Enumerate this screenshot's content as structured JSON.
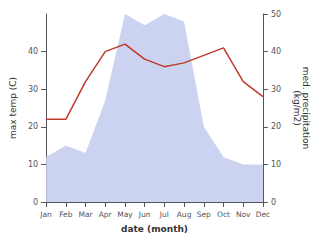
{
  "chart_data": {
    "type": "line",
    "categories": [
      "Jan",
      "Feb",
      "Mar",
      "Apr",
      "May",
      "Jun",
      "Jul",
      "Aug",
      "Sep",
      "Oct",
      "Nov",
      "Dec"
    ],
    "series": [
      {
        "type": "line",
        "color": "#c0392b",
        "axis": "y",
        "values": [
          22,
          22,
          32,
          40,
          42,
          38,
          36,
          37,
          39,
          41,
          32,
          28
        ]
      },
      {
        "type": "area",
        "color": "#c5cef0",
        "axis": "y2",
        "values": [
          12,
          15,
          13,
          27,
          50,
          47,
          50,
          48,
          20,
          12,
          10,
          10
        ]
      }
    ],
    "xlabel": "date (month)",
    "ylabel": "max temp (C)",
    "y2label": "med. precipitation\n(kg/m2)",
    "ylim": [
      0,
      50
    ],
    "yticks": [
      0,
      10,
      20,
      30,
      40
    ],
    "y2lim": [
      0,
      50
    ],
    "y2ticks": [
      0,
      10,
      20,
      30,
      40,
      50
    ],
    "grid": false
  }
}
